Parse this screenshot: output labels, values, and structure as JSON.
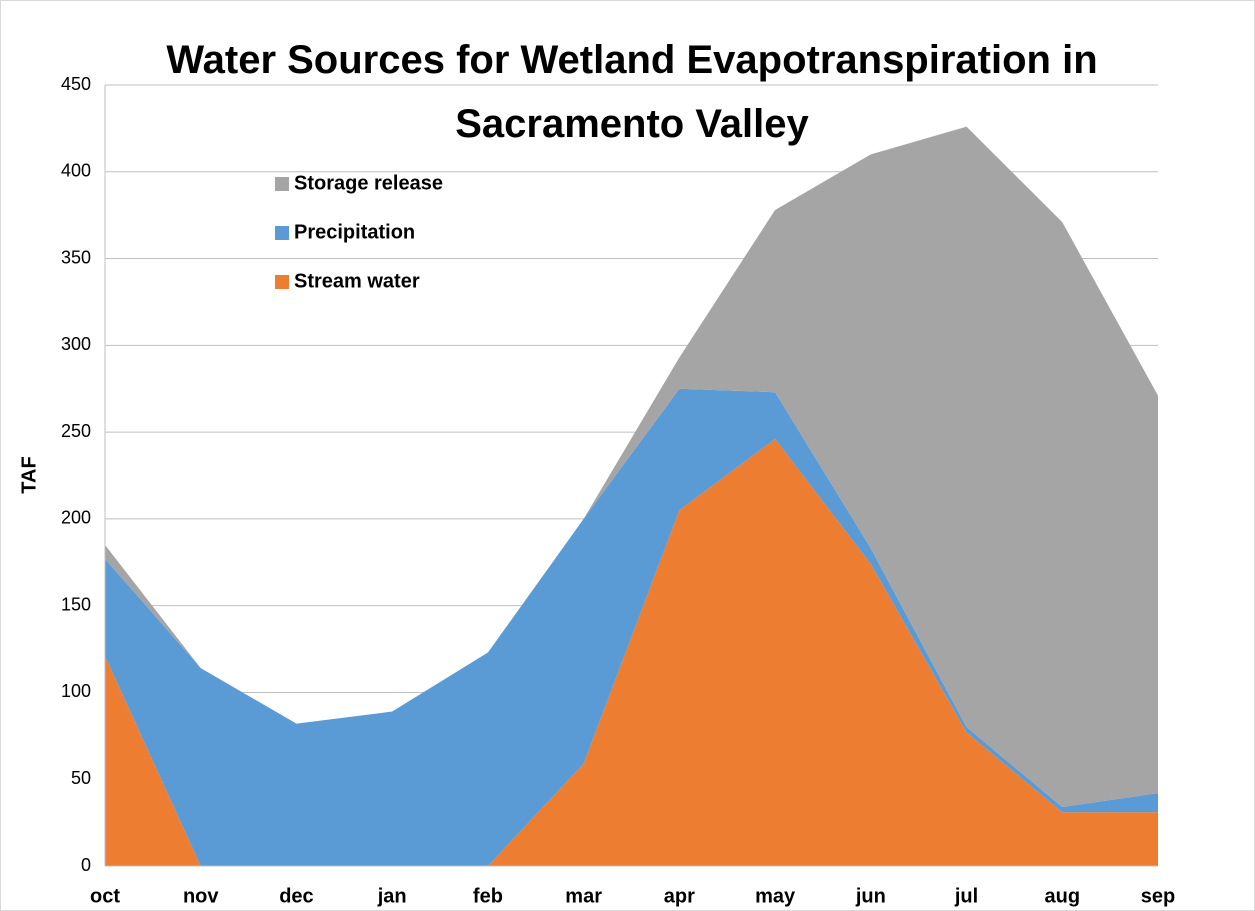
{
  "chart_data": {
    "type": "area",
    "stacked": true,
    "title": "Water Sources for Wetland Evapotranspiration in Sacramento Valley",
    "y_label": "TAF",
    "categories": [
      "oct",
      "nov",
      "dec",
      "jan",
      "feb",
      "mar",
      "apr",
      "may",
      "jun",
      "jul",
      "aug",
      "sep"
    ],
    "series": [
      {
        "name": "Stream water",
        "color": "#ed7d31",
        "values": [
          121,
          0,
          0,
          0,
          0,
          59,
          205,
          246,
          174,
          77,
          31,
          31
        ]
      },
      {
        "name": "Precipitation",
        "color": "#5b9bd5",
        "values": [
          56,
          114,
          82,
          89,
          123,
          141,
          70,
          27,
          9,
          3,
          3,
          11
        ]
      },
      {
        "name": "Storage release",
        "color": "#a5a5a5",
        "values": [
          8,
          0,
          0,
          0,
          0,
          0,
          18,
          105,
          227,
          346,
          337,
          229
        ]
      }
    ],
    "ylim": [
      0,
      450
    ],
    "yticks": [
      0,
      50,
      100,
      150,
      200,
      250,
      300,
      350,
      400,
      450
    ],
    "grid": true,
    "legend": "top-left"
  }
}
